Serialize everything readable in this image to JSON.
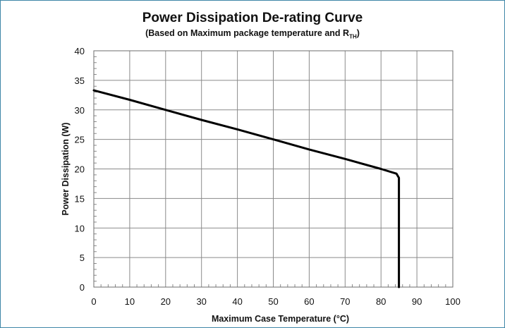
{
  "chart_data": {
    "type": "line",
    "title": "Power Dissipation De-rating Curve",
    "subtitle": {
      "main": "(Based on Maximum package temperature and R",
      "sub": "TH",
      "end": ")"
    },
    "xlabel": "Maximum Case Temperature (°C)",
    "ylabel": "Power Dissipation (W)",
    "xlim": [
      0,
      100
    ],
    "ylim": [
      0,
      40
    ],
    "xticks": [
      0,
      10,
      20,
      30,
      40,
      50,
      60,
      70,
      80,
      90,
      100
    ],
    "yticks": [
      0,
      5,
      10,
      15,
      20,
      25,
      30,
      35,
      40
    ],
    "grid": true,
    "series": [
      {
        "x": [
          0,
          10,
          20,
          30,
          40,
          50,
          60,
          70,
          80,
          84.3,
          85,
          85
        ],
        "y": [
          33.3,
          31.7,
          30.0,
          28.3,
          26.7,
          25.0,
          23.3,
          21.7,
          20.0,
          19.2,
          18.5,
          0
        ],
        "color": "#000000"
      }
    ]
  }
}
